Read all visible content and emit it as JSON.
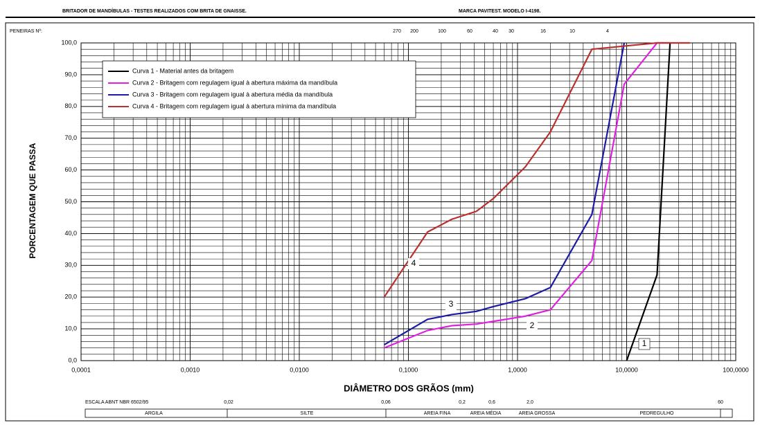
{
  "header": {
    "left": "BRITADOR DE MANDÍBULAS - TESTES REALIZADOS COM BRITA DE GNAISSE.",
    "right": "MARCA PAVITEST. MODELO I-4198."
  },
  "chart_data": {
    "type": "line",
    "x_scale": "log",
    "grid": true,
    "xlabel": "DIÂMETRO DOS GRÃOS (mm)",
    "ylabel": "PORCENTAGEM QUE PASSA",
    "xlim": [
      0.0001,
      100
    ],
    "ylim": [
      0,
      100
    ],
    "xticks": [
      {
        "value": 0.0001,
        "label": "0,0001"
      },
      {
        "value": 0.001,
        "label": "0,0010"
      },
      {
        "value": 0.01,
        "label": "0,0100"
      },
      {
        "value": 0.1,
        "label": "0,1000"
      },
      {
        "value": 1,
        "label": "1,0000"
      },
      {
        "value": 10,
        "label": "10,0000"
      },
      {
        "value": 100,
        "label": "100,0000"
      }
    ],
    "yticks": [
      {
        "value": 0,
        "label": "0,0"
      },
      {
        "value": 10,
        "label": "10,0"
      },
      {
        "value": 20,
        "label": "20,0"
      },
      {
        "value": 30,
        "label": "30,0"
      },
      {
        "value": 40,
        "label": "40,0"
      },
      {
        "value": 50,
        "label": "50,0"
      },
      {
        "value": 60,
        "label": "60,0"
      },
      {
        "value": 70,
        "label": "70,0"
      },
      {
        "value": 80,
        "label": "80,0"
      },
      {
        "value": 90,
        "label": "90,0"
      },
      {
        "value": 100,
        "label": "100,0"
      }
    ],
    "series": [
      {
        "name": "Curva 1 - Material antes da britagem",
        "color": "#000000",
        "x": [
          10,
          19,
          25
        ],
        "values": [
          0,
          27,
          100
        ]
      },
      {
        "name": "Curva 2 - Britagem com regulagem igual à abertura máxima da mandíbula",
        "color": "#e020e0",
        "x": [
          0.06,
          0.15,
          0.25,
          0.42,
          1.18,
          2.0,
          4.8,
          9.5,
          19,
          25
        ],
        "values": [
          4,
          9.5,
          11,
          11.5,
          14,
          16,
          31.5,
          87,
          100,
          100
        ]
      },
      {
        "name": "Curva 3 - Britagem com regulagem igual à abertura média da mandíbula",
        "color": "#1a1aa6",
        "x": [
          0.06,
          0.15,
          0.25,
          0.42,
          0.6,
          1.18,
          2.0,
          4.8,
          9.5
        ],
        "values": [
          5,
          13,
          14.5,
          15.5,
          17,
          19.5,
          23,
          46,
          100
        ]
      },
      {
        "name": "Curva 4 - Britagem com regulagem igual à abertura mínima da mandíbula",
        "color": "#b8312f",
        "x": [
          0.06,
          0.15,
          0.25,
          0.42,
          0.6,
          1.18,
          2.0,
          4.8,
          9.5,
          19,
          38
        ],
        "values": [
          20,
          40.5,
          44.5,
          47,
          51,
          61,
          72,
          98,
          99,
          100,
          100
        ]
      }
    ],
    "annotations": [
      "1",
      "2",
      "3",
      "4"
    ],
    "sieve_title": "PENEIRAS Nº:",
    "sieves": [
      "270",
      "200",
      "100",
      "60",
      "40",
      "30",
      "16",
      "10",
      "4"
    ],
    "scale_title": "ESCALA ABNT NBR 6502/95",
    "scale_labels": [
      "0,02",
      "0,06",
      "0,2",
      "0,6",
      "2,0",
      "60"
    ],
    "fractions": [
      "ARGILA",
      "SILTE",
      "AREIA FINA",
      "AREIA MÉDIA",
      "AREIA GROSSA",
      "PEDREGULHO"
    ]
  }
}
